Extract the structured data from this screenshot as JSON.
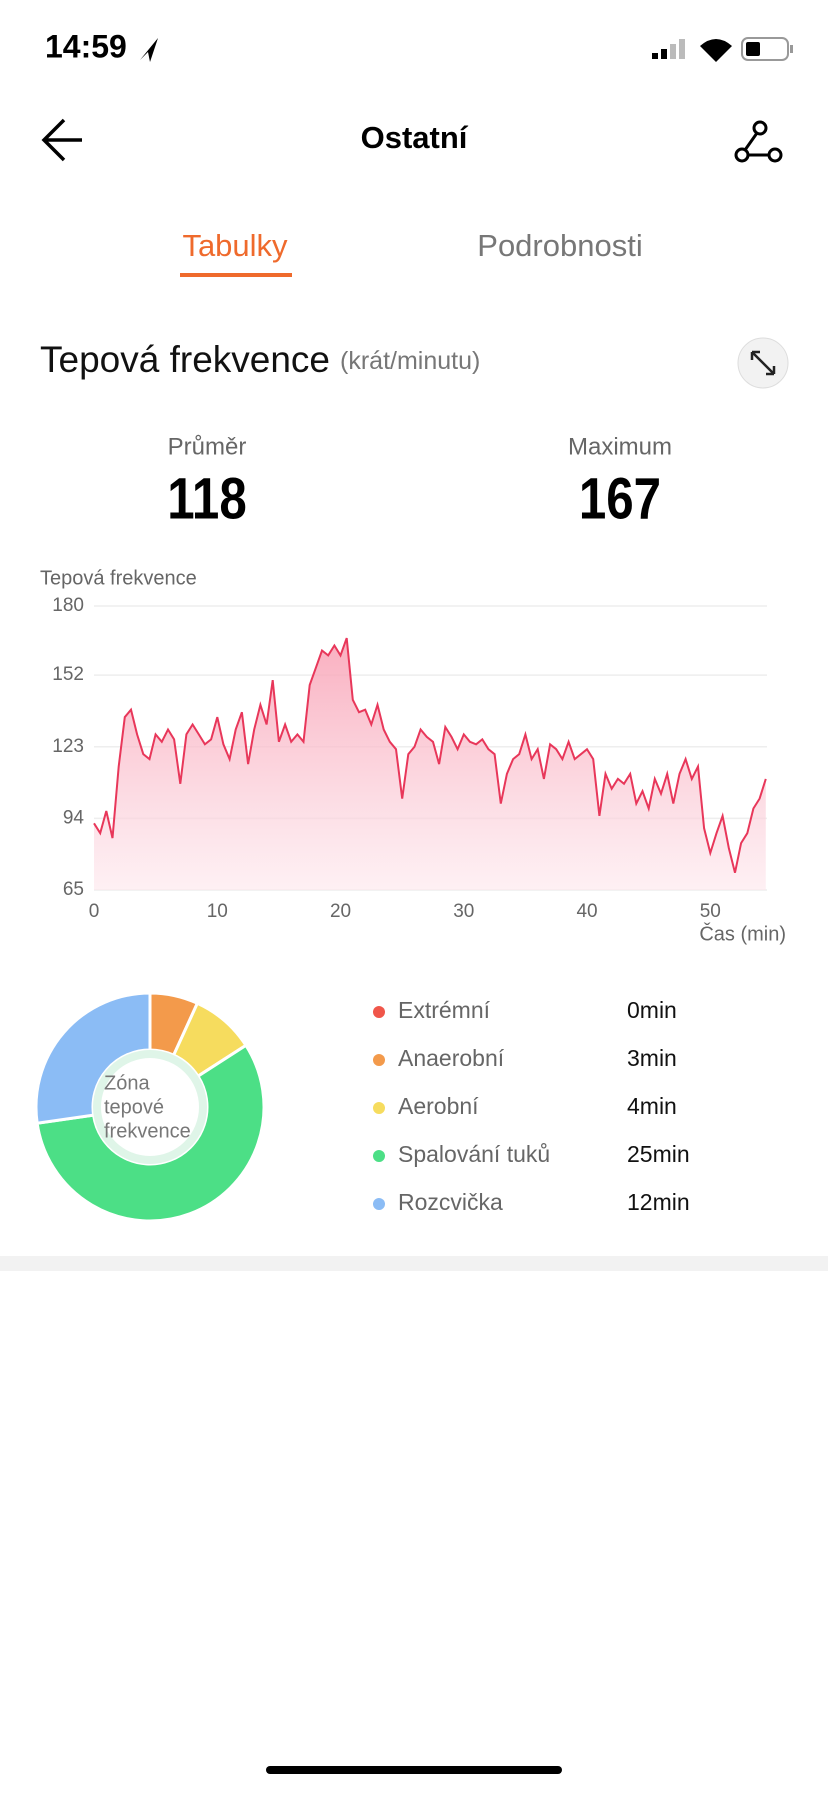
{
  "status_bar": {
    "time": "14:59"
  },
  "header": {
    "title": "Ostatní"
  },
  "tabs": [
    "Tabulky",
    "Podrobnosti"
  ],
  "section": {
    "title": "Tepová frekvence",
    "unit": "(krát/minutu)"
  },
  "stats": [
    {
      "label": "Průměr",
      "value": 118
    },
    {
      "label": "Maximum",
      "value": 167
    }
  ],
  "chart_data": [
    {
      "type": "line",
      "y_label": "Tepová frekvence",
      "x_label": "Čas (min)",
      "xlim": [
        0,
        54.6
      ],
      "xticks": [
        0,
        10,
        20,
        30,
        40,
        50
      ],
      "ylim": [
        65,
        180
      ],
      "yticks": [
        65,
        94,
        123,
        152,
        180
      ],
      "grid": true,
      "x": [
        0,
        0.5,
        1,
        1.5,
        2,
        2.5,
        3,
        3.5,
        4,
        4.5,
        5,
        5.5,
        6,
        6.5,
        7,
        7.5,
        8,
        8.5,
        9,
        9.5,
        10,
        10.5,
        11,
        11.5,
        12,
        12.5,
        13,
        13.5,
        14,
        14.5,
        15,
        15.5,
        16,
        16.5,
        17,
        17.5,
        18,
        18.5,
        19,
        19.5,
        20,
        20.5,
        21,
        21.5,
        22,
        22.5,
        23,
        23.5,
        24,
        24.5,
        25,
        25.5,
        26,
        26.5,
        27,
        27.5,
        28,
        28.5,
        29,
        29.5,
        30,
        30.5,
        31,
        31.5,
        32,
        32.5,
        33,
        33.5,
        34,
        34.5,
        35,
        35.5,
        36,
        36.5,
        37,
        37.5,
        38,
        38.5,
        39,
        39.5,
        40,
        40.5,
        41,
        41.5,
        42,
        42.5,
        43,
        43.5,
        44,
        44.5,
        45,
        45.5,
        46,
        46.5,
        47,
        47.5,
        48,
        48.5,
        49,
        49.5,
        50,
        50.5,
        51,
        51.5,
        52,
        52.5,
        53,
        53.5,
        54,
        54.5
      ],
      "series": [
        {
          "color": "#e8375a",
          "values": [
            92,
            88,
            97,
            86,
            115,
            135,
            138,
            128,
            120,
            118,
            128,
            125,
            130,
            126,
            108,
            128,
            132,
            128,
            124,
            126,
            135,
            124,
            118,
            130,
            137,
            116,
            130,
            140,
            132,
            150,
            125,
            132,
            125,
            128,
            125,
            148,
            155,
            162,
            160,
            164,
            160,
            167,
            142,
            137,
            138,
            132,
            140,
            130,
            125,
            122,
            102,
            120,
            123,
            130,
            127,
            125,
            116,
            131,
            127,
            122,
            128,
            125,
            124,
            126,
            122,
            120,
            100,
            112,
            118,
            120,
            128,
            118,
            122,
            110,
            124,
            122,
            118,
            125,
            118,
            120,
            122,
            118,
            95,
            112,
            106,
            110,
            108,
            112,
            100,
            105,
            98,
            110,
            104,
            112,
            100,
            112,
            118,
            110,
            115,
            90,
            80,
            88,
            95,
            82,
            72,
            84,
            88,
            98,
            102,
            110
          ]
        }
      ]
    },
    {
      "type": "pie",
      "center_label": [
        "Zóna",
        "tepové",
        "frekvence"
      ],
      "categories": [
        "Extrémní",
        "Anaerobní",
        "Aerobní",
        "Spalování tuků",
        "Rozcvička"
      ],
      "values": [
        0,
        3,
        4,
        25,
        12
      ],
      "value_labels": [
        "0min",
        "3min",
        "4min",
        "25min",
        "12min"
      ],
      "colors": [
        "#f0564a",
        "#f39a4b",
        "#f6dc5e",
        "#4cdf86",
        "#8bbcf5"
      ]
    }
  ]
}
